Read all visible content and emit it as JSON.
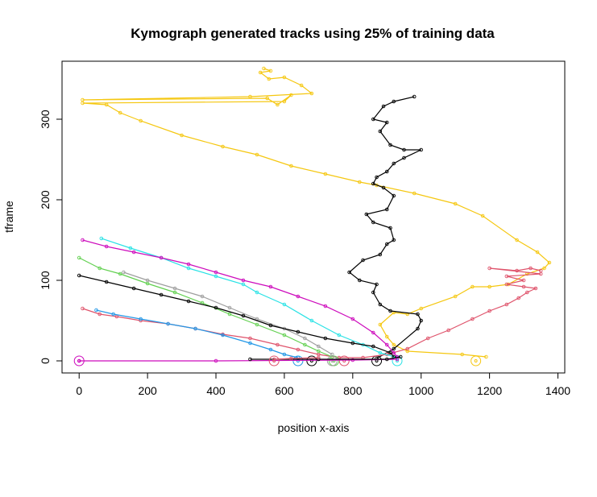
{
  "chart_data": {
    "type": "line",
    "title": "Kymograph generated tracks using 25% of training data",
    "xlabel": "position x-axis",
    "ylabel": "tframe",
    "xlim": [
      -50,
      1420
    ],
    "ylim": [
      -15,
      372
    ],
    "xticks": [
      0,
      200,
      400,
      600,
      800,
      1000,
      1200,
      1400
    ],
    "yticks": [
      0,
      100,
      200,
      300
    ],
    "grid": false,
    "legend": "none",
    "series": [
      {
        "color": "#F5C710",
        "start_marker": [
          1160,
          0
        ],
        "points": [
          [
            1190,
            5
          ],
          [
            1120,
            8
          ],
          [
            960,
            12
          ],
          [
            920,
            20
          ],
          [
            900,
            30
          ],
          [
            880,
            45
          ],
          [
            920,
            60
          ],
          [
            960,
            58
          ],
          [
            1000,
            65
          ],
          [
            1100,
            80
          ],
          [
            1150,
            92
          ],
          [
            1200,
            92
          ],
          [
            1255,
            95
          ],
          [
            1310,
            108
          ],
          [
            1360,
            115
          ],
          [
            1375,
            122
          ],
          [
            1340,
            135
          ],
          [
            1280,
            150
          ],
          [
            1180,
            180
          ],
          [
            1100,
            195
          ],
          [
            980,
            208
          ],
          [
            870,
            218
          ],
          [
            820,
            222
          ],
          [
            720,
            232
          ],
          [
            620,
            242
          ],
          [
            520,
            256
          ],
          [
            420,
            266
          ],
          [
            300,
            280
          ],
          [
            180,
            298
          ],
          [
            120,
            308
          ],
          [
            80,
            318
          ],
          [
            10,
            320
          ],
          [
            600,
            322
          ],
          [
            620,
            330
          ],
          [
            580,
            318
          ],
          [
            550,
            326
          ],
          [
            10,
            324
          ],
          [
            500,
            328
          ],
          [
            680,
            332
          ],
          [
            650,
            342
          ],
          [
            600,
            352
          ],
          [
            555,
            350
          ],
          [
            530,
            358
          ],
          [
            560,
            360
          ],
          [
            540,
            363
          ]
        ]
      },
      {
        "color": "#000000",
        "start_marker": [
          870,
          0
        ],
        "points": [
          [
            870,
            3
          ],
          [
            920,
            15
          ],
          [
            990,
            40
          ],
          [
            1000,
            50
          ],
          [
            990,
            58
          ],
          [
            910,
            62
          ],
          [
            880,
            70
          ],
          [
            860,
            85
          ],
          [
            870,
            95
          ],
          [
            820,
            100
          ],
          [
            790,
            110
          ],
          [
            830,
            125
          ],
          [
            880,
            132
          ],
          [
            900,
            145
          ],
          [
            920,
            150
          ],
          [
            910,
            165
          ],
          [
            860,
            172
          ],
          [
            840,
            182
          ],
          [
            900,
            188
          ],
          [
            920,
            205
          ],
          [
            890,
            215
          ],
          [
            860,
            220
          ],
          [
            870,
            228
          ],
          [
            900,
            235
          ],
          [
            920,
            245
          ],
          [
            950,
            252
          ],
          [
            1000,
            262
          ],
          [
            950,
            262
          ],
          [
            910,
            268
          ],
          [
            880,
            285
          ],
          [
            900,
            296
          ],
          [
            860,
            300
          ],
          [
            890,
            316
          ],
          [
            920,
            322
          ],
          [
            980,
            328
          ]
        ]
      },
      {
        "color": "#DF536B",
        "start_marker": [
          775,
          0
        ],
        "points": [
          [
            10,
            65
          ],
          [
            60,
            58
          ],
          [
            110,
            55
          ],
          [
            180,
            50
          ],
          [
            260,
            46
          ],
          [
            340,
            40
          ],
          [
            420,
            33
          ],
          [
            500,
            28
          ],
          [
            580,
            20
          ],
          [
            640,
            14
          ],
          [
            700,
            8
          ],
          [
            760,
            4
          ],
          [
            830,
            4
          ],
          [
            900,
            8
          ],
          [
            960,
            15
          ],
          [
            1020,
            28
          ],
          [
            1080,
            38
          ],
          [
            1150,
            52
          ],
          [
            1200,
            62
          ],
          [
            1250,
            70
          ],
          [
            1285,
            78
          ],
          [
            1310,
            85
          ],
          [
            1335,
            90
          ],
          [
            1300,
            92
          ],
          [
            1250,
            95
          ],
          [
            1300,
            100
          ],
          [
            1250,
            105
          ],
          [
            1350,
            108
          ],
          [
            1200,
            115
          ],
          [
            1280,
            112
          ],
          [
            1320,
            115
          ],
          [
            1350,
            112
          ]
        ]
      },
      {
        "color": "#61D04F",
        "start_marker": [
          745,
          0
        ],
        "points": [
          [
            0,
            128
          ],
          [
            60,
            115
          ],
          [
            120,
            108
          ],
          [
            200,
            96
          ],
          [
            280,
            85
          ],
          [
            360,
            72
          ],
          [
            440,
            58
          ],
          [
            520,
            45
          ],
          [
            600,
            32
          ],
          [
            660,
            20
          ],
          [
            700,
            12
          ],
          [
            740,
            5
          ]
        ]
      },
      {
        "color": "#2297E6",
        "start_marker": [
          640,
          0
        ],
        "points": [
          [
            50,
            63
          ],
          [
            100,
            58
          ],
          [
            180,
            52
          ],
          [
            260,
            46
          ],
          [
            340,
            40
          ],
          [
            420,
            32
          ],
          [
            500,
            22
          ],
          [
            560,
            14
          ],
          [
            600,
            8
          ],
          [
            640,
            4
          ]
        ]
      },
      {
        "color": "#28E2E5",
        "start_marker": [
          930,
          0
        ],
        "points": [
          [
            65,
            152
          ],
          [
            150,
            140
          ],
          [
            240,
            128
          ],
          [
            320,
            115
          ],
          [
            400,
            105
          ],
          [
            480,
            95
          ],
          [
            520,
            85
          ],
          [
            600,
            70
          ],
          [
            680,
            50
          ],
          [
            760,
            32
          ],
          [
            830,
            20
          ],
          [
            880,
            10
          ],
          [
            930,
            4
          ]
        ]
      },
      {
        "color": "#CD0BBC",
        "start_marker": [
          0,
          0
        ],
        "points": [
          [
            10,
            150
          ],
          [
            80,
            142
          ],
          [
            160,
            135
          ],
          [
            240,
            128
          ],
          [
            320,
            120
          ],
          [
            400,
            110
          ],
          [
            480,
            100
          ],
          [
            560,
            92
          ],
          [
            640,
            80
          ],
          [
            720,
            68
          ],
          [
            800,
            52
          ],
          [
            860,
            35
          ],
          [
            900,
            20
          ],
          [
            920,
            10
          ],
          [
            930,
            5
          ]
        ]
      },
      {
        "color": "#9E9E9E",
        "start_marker": [
          740,
          0
        ],
        "points": [
          [
            130,
            110
          ],
          [
            200,
            100
          ],
          [
            280,
            90
          ],
          [
            360,
            80
          ],
          [
            440,
            66
          ],
          [
            520,
            52
          ],
          [
            600,
            40
          ],
          [
            660,
            28
          ],
          [
            700,
            18
          ],
          [
            740,
            8
          ]
        ]
      },
      {
        "color": "#000000",
        "start_marker": [
          680,
          0
        ],
        "points": [
          [
            0,
            106
          ],
          [
            80,
            98
          ],
          [
            160,
            90
          ],
          [
            240,
            82
          ],
          [
            320,
            74
          ],
          [
            400,
            66
          ],
          [
            480,
            56
          ],
          [
            560,
            44
          ],
          [
            640,
            36
          ],
          [
            720,
            28
          ],
          [
            800,
            22
          ],
          [
            860,
            18
          ],
          [
            910,
            10
          ],
          [
            920,
            5
          ]
        ]
      },
      {
        "color": "#CD0BBC",
        "start_marker": null,
        "points": [
          [
            0,
            0
          ],
          [
            400,
            0
          ],
          [
            800,
            1
          ],
          [
            930,
            2
          ]
        ]
      },
      {
        "color": "#000000",
        "start_marker": null,
        "points": [
          [
            500,
            2
          ],
          [
            700,
            2
          ],
          [
            900,
            2
          ],
          [
            940,
            5
          ]
        ]
      },
      {
        "color": "#DF536B",
        "start_marker": [
          570,
          0
        ],
        "points": [
          [
            570,
            2
          ],
          [
            620,
            3
          ],
          [
            700,
            4
          ]
        ]
      }
    ]
  }
}
